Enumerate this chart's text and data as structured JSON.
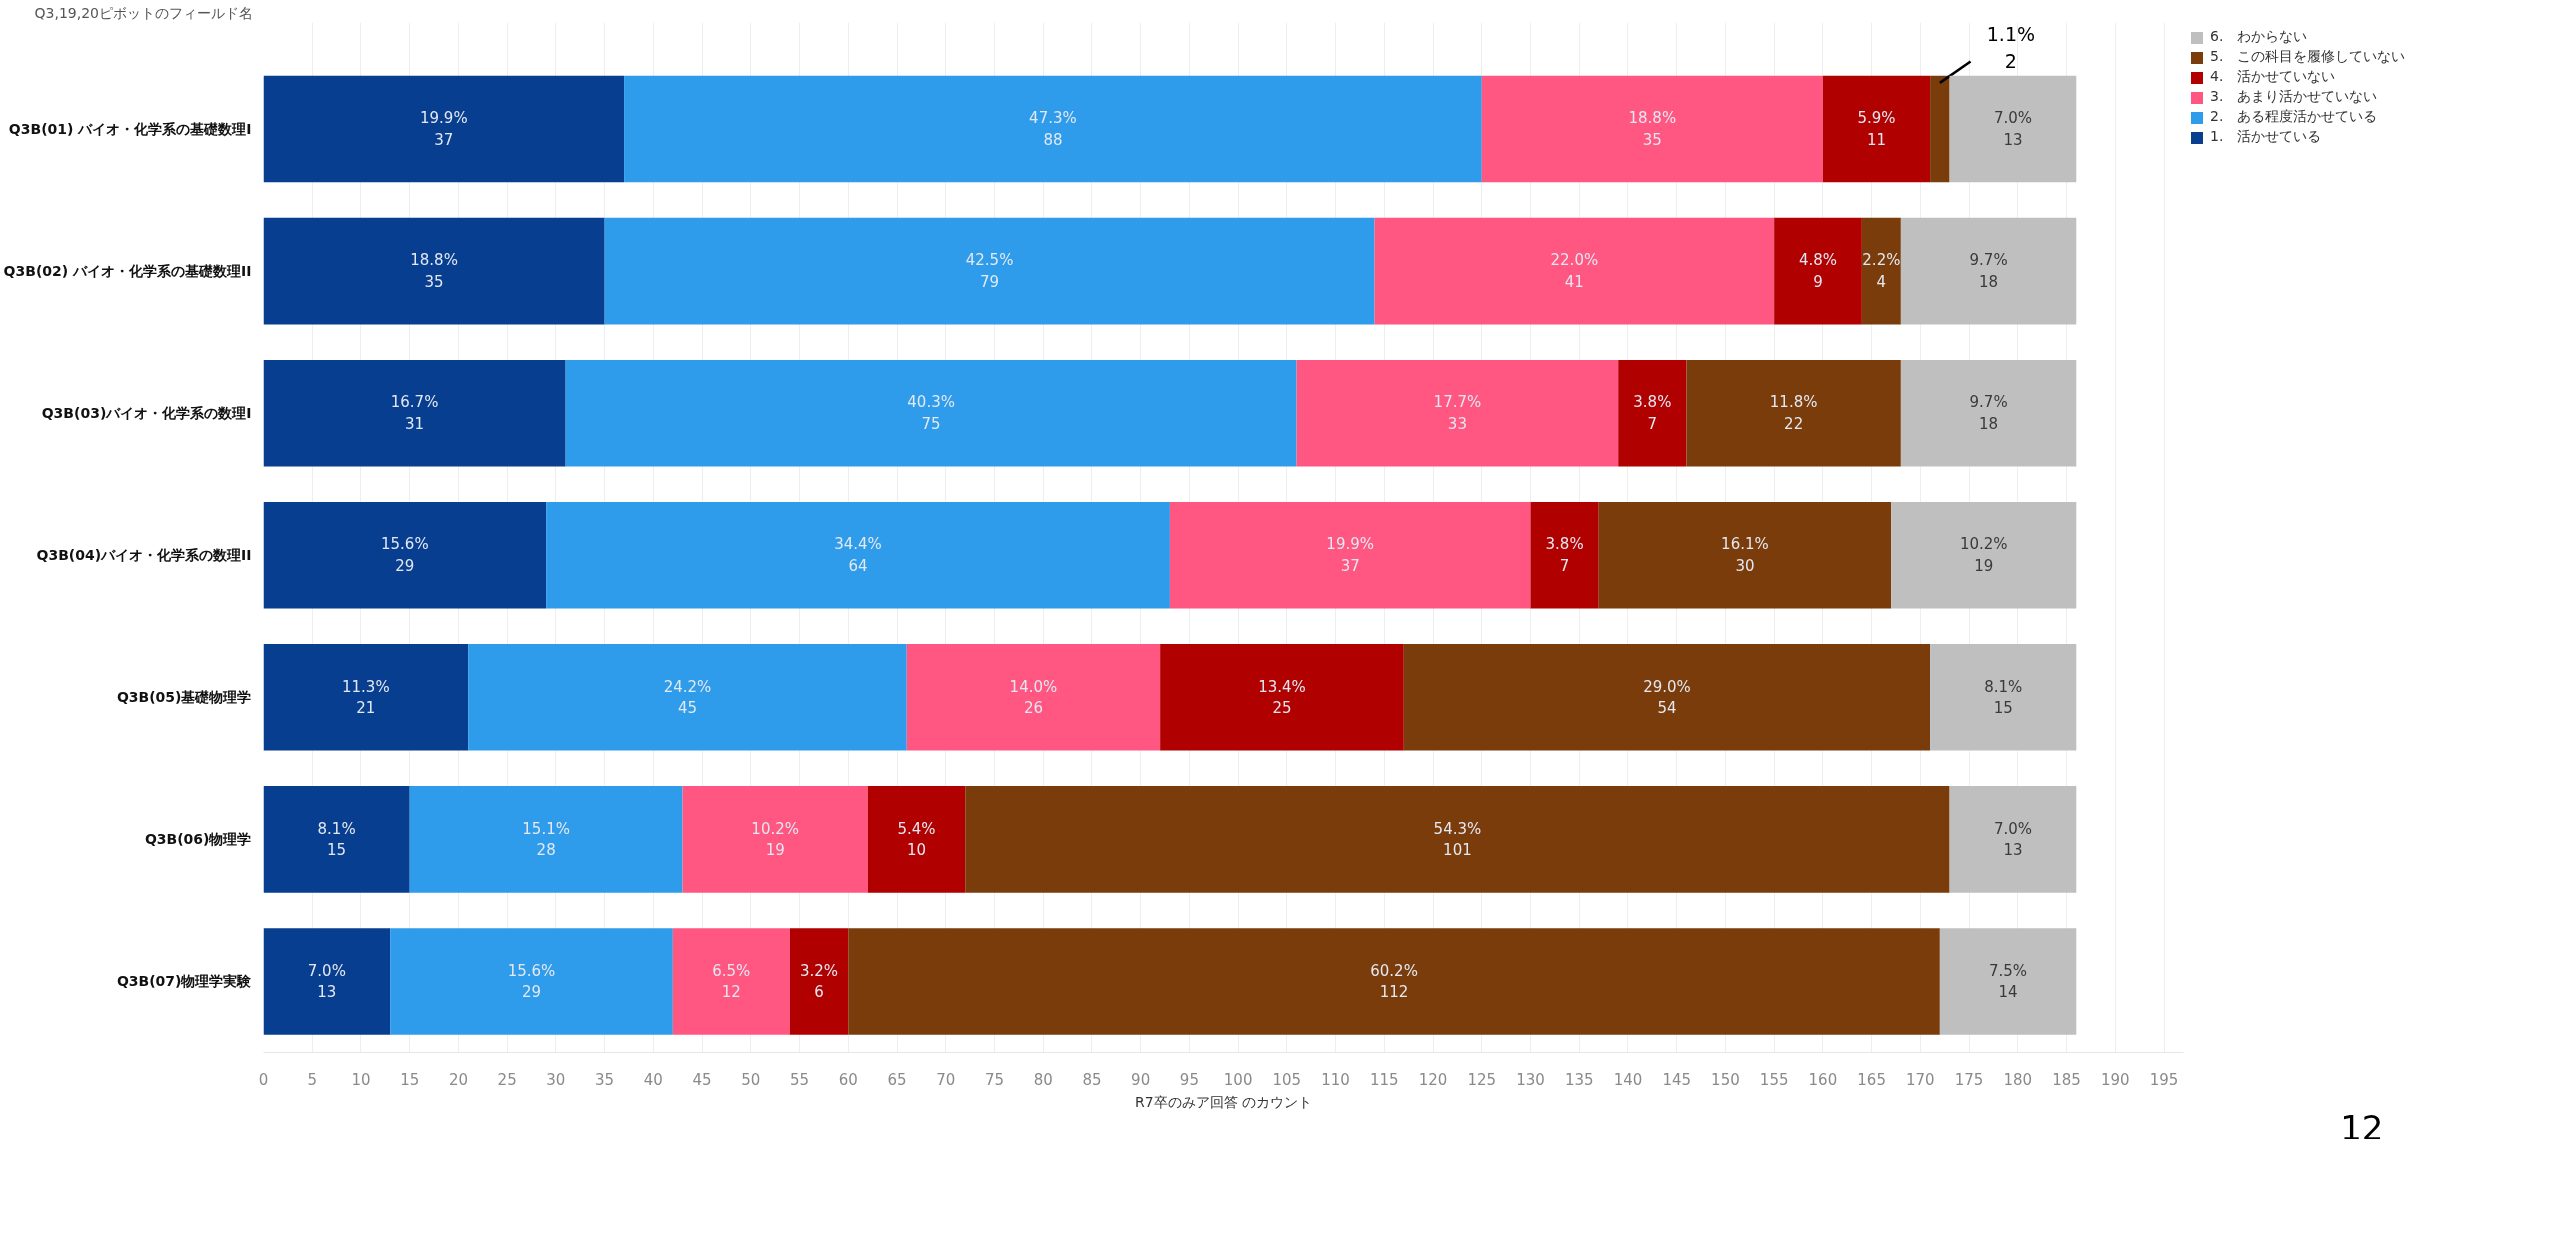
{
  "chart_data": {
    "type": "bar",
    "orientation": "horizontal",
    "stacked": true,
    "ylabel": "Q3,19,20ピボットのフィールド名",
    "xlabel": "R7卒のみア回答 のカウント",
    "categories": [
      "Q3B(01) バイオ・化学系の基礎数理I",
      "Q3B(02) バイオ・化学系の基礎数理II",
      "Q3B(03)バイオ・化学系の数理I",
      "Q3B(04)バイオ・化学系の数理II",
      "Q3B(05)基礎物理学",
      "Q3B(06)物理学",
      "Q3B(07)物理学実験"
    ],
    "series": [
      {
        "name": "1.　活かせている",
        "color": "#073e8f",
        "values": [
          37,
          35,
          31,
          29,
          21,
          15,
          13
        ],
        "value_labels": [
          "19.9%\n37",
          "18.8%\n35",
          "16.7%\n31",
          "15.6%\n29",
          "11.3%\n21",
          "8.1%\n15",
          "7.0%\n13"
        ]
      },
      {
        "name": "2.　ある程度活かせている",
        "color": "#2e9cea",
        "values": [
          88,
          79,
          75,
          64,
          45,
          28,
          29
        ],
        "value_labels": [
          "47.3%\n88",
          "42.5%\n79",
          "40.3%\n75",
          "34.4%\n64",
          "24.2%\n45",
          "15.1%\n28",
          "15.6%\n29"
        ]
      },
      {
        "name": "3.　あまり活かせていない",
        "color": "#ff5781",
        "values": [
          35,
          41,
          33,
          37,
          26,
          19,
          12
        ],
        "value_labels": [
          "18.8%\n35",
          "22.0%\n41",
          "17.7%\n33",
          "19.9%\n37",
          "14.0%\n26",
          "10.2%\n19",
          "6.5%\n12"
        ]
      },
      {
        "name": "4.　活かせていない",
        "color": "#b00000",
        "values": [
          11,
          9,
          7,
          7,
          25,
          10,
          6
        ],
        "value_labels": [
          "5.9%\n11",
          "4.8%\n9",
          "3.8%\n7",
          "3.8%\n7",
          "13.4%\n25",
          "5.4%\n10",
          "3.2%\n6"
        ]
      },
      {
        "name": "5.　この科目を履修していない",
        "color": "#7a3c0a",
        "values": [
          2,
          4,
          22,
          30,
          54,
          101,
          112
        ],
        "value_labels": [
          "1.1%\n2",
          "2.2%\n4",
          "11.8%\n22",
          "16.1%\n30",
          "29.0%\n54",
          "54.3%\n101",
          "60.2%\n112"
        ]
      },
      {
        "name": "6.　わからない",
        "color": "#bfbfbf",
        "values": [
          13,
          18,
          18,
          19,
          15,
          13,
          14
        ],
        "value_labels": [
          "7.0%\n13",
          "9.7%\n18",
          "9.7%\n18",
          "10.2%\n19",
          "8.1%\n15",
          "7.0%\n13",
          "7.5%\n14"
        ]
      }
    ],
    "xlim": [
      0,
      197
    ],
    "xticks": [
      0,
      5,
      10,
      15,
      20,
      25,
      30,
      35,
      40,
      45,
      50,
      55,
      60,
      65,
      70,
      75,
      80,
      85,
      90,
      95,
      100,
      105,
      110,
      115,
      120,
      125,
      130,
      135,
      140,
      145,
      150,
      155,
      160,
      165,
      170,
      175,
      180,
      185,
      190,
      195
    ],
    "grid": "x",
    "legend": "top right",
    "annotations": [
      "12"
    ]
  }
}
